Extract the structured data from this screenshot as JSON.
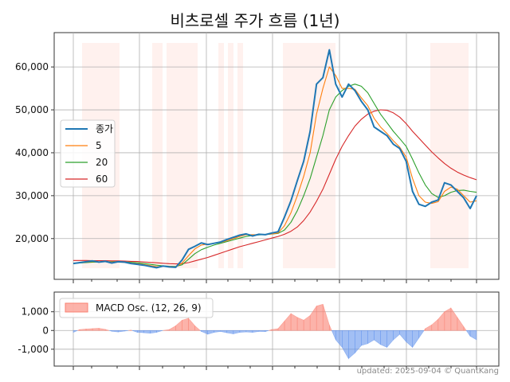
{
  "chart_data": [
    {
      "type": "line",
      "title": "비츠로셀 주가 흐름 (1년)",
      "xlabel": "",
      "ylabel": "",
      "ylim": [
        10500,
        68000
      ],
      "yticks": [
        20000,
        30000,
        40000,
        50000,
        60000
      ],
      "ytick_labels": [
        "20,000",
        "30,000",
        "40,000",
        "50,000",
        "60,000"
      ],
      "grid": true,
      "legend_position": "center-left",
      "x": [
        0,
        4,
        8,
        12,
        16,
        20,
        24,
        28,
        32,
        36,
        40,
        44,
        48,
        52,
        56,
        60,
        64,
        68,
        72,
        76,
        80,
        84,
        88,
        92,
        96,
        100,
        104,
        108,
        112,
        116,
        120,
        124,
        128,
        132,
        136,
        140,
        144,
        148,
        152,
        156,
        160,
        164,
        168,
        172,
        176,
        180,
        184,
        188,
        192,
        196,
        200,
        204,
        208,
        212,
        216,
        220,
        224,
        228,
        232,
        236,
        240,
        244,
        248,
        252
      ],
      "series": [
        {
          "name": "종가",
          "color": "#1f77b4",
          "values": [
            14200,
            14400,
            14600,
            14800,
            14500,
            14700,
            14300,
            14600,
            14500,
            14200,
            14000,
            13800,
            13500,
            13200,
            13600,
            13400,
            13300,
            15000,
            17500,
            18200,
            19000,
            18600,
            18900,
            19200,
            19800,
            20300,
            20800,
            21100,
            20600,
            21000,
            20900,
            21300,
            21600,
            25000,
            28800,
            33500,
            38000,
            45000,
            56000,
            57500,
            64000,
            56000,
            53000,
            56000,
            54500,
            52000,
            50000,
            46000,
            45000,
            44000,
            42000,
            41000,
            38000,
            31000,
            28000,
            27500,
            28500,
            29000,
            33000,
            32500,
            31000,
            29500,
            27000,
            30000
          ]
        },
        {
          "name": "5",
          "color": "#ff7f0e",
          "values": [
            14300,
            14350,
            14500,
            14650,
            14600,
            14600,
            14500,
            14500,
            14450,
            14300,
            14150,
            13950,
            13700,
            13450,
            13500,
            13500,
            13400,
            14300,
            16000,
            17600,
            18500,
            18700,
            18900,
            19100,
            19500,
            20000,
            20500,
            20900,
            20900,
            20900,
            20950,
            21100,
            21300,
            23000,
            26000,
            30000,
            34500,
            40000,
            49000,
            55000,
            60000,
            58000,
            55000,
            55000,
            54800,
            52800,
            51000,
            48000,
            46000,
            44500,
            42800,
            41300,
            39000,
            34000,
            30000,
            28500,
            28200,
            28600,
            31000,
            32000,
            31500,
            30000,
            28500,
            28800
          ]
        },
        {
          "name": "20",
          "color": "#2ca02c",
          "values": [
            14200,
            14300,
            14400,
            14500,
            14550,
            14600,
            14600,
            14600,
            14550,
            14450,
            14350,
            14200,
            14000,
            13800,
            13650,
            13550,
            13500,
            13900,
            15200,
            16500,
            17400,
            18000,
            18500,
            18900,
            19300,
            19700,
            20100,
            20500,
            20700,
            20850,
            20950,
            21050,
            21200,
            22000,
            23800,
            26500,
            30000,
            34000,
            39000,
            44000,
            50000,
            53000,
            54500,
            55500,
            56000,
            55500,
            54000,
            51500,
            49000,
            47000,
            45000,
            43300,
            41500,
            38500,
            35300,
            32500,
            30500,
            29600,
            30000,
            30800,
            31200,
            31300,
            31000,
            30800
          ]
        },
        {
          "name": "60",
          "color": "#d62728",
          "values": [
            14900,
            14900,
            14900,
            14850,
            14850,
            14850,
            14800,
            14800,
            14750,
            14700,
            14650,
            14550,
            14450,
            14350,
            14250,
            14150,
            14100,
            14150,
            14400,
            14800,
            15200,
            15600,
            16100,
            16600,
            17100,
            17600,
            18100,
            18500,
            18900,
            19300,
            19700,
            20100,
            20500,
            21000,
            21700,
            22700,
            24200,
            26200,
            28700,
            31500,
            35000,
            38500,
            41500,
            44000,
            46200,
            47800,
            49000,
            49700,
            50000,
            49900,
            49300,
            48300,
            46800,
            45000,
            43400,
            41800,
            40200,
            38800,
            37500,
            36400,
            35500,
            34800,
            34200,
            33700
          ]
        }
      ]
    },
    {
      "type": "area",
      "ylim": [
        -1900,
        2050
      ],
      "yticks": [
        -1000,
        0,
        1000
      ],
      "ytick_labels": [
        "-1,000",
        "0",
        "1,000"
      ],
      "grid": true,
      "legend_position": "top-left",
      "x": [
        0,
        4,
        8,
        12,
        16,
        20,
        24,
        28,
        32,
        36,
        40,
        44,
        48,
        52,
        56,
        60,
        64,
        68,
        72,
        76,
        80,
        84,
        88,
        92,
        96,
        100,
        104,
        108,
        112,
        116,
        120,
        124,
        128,
        132,
        136,
        140,
        144,
        148,
        152,
        156,
        160,
        164,
        168,
        172,
        176,
        180,
        184,
        188,
        192,
        196,
        200,
        204,
        208,
        212,
        216,
        220,
        224,
        228,
        232,
        236,
        240,
        244,
        248,
        252
      ],
      "series": [
        {
          "name": "MACD Osc. (12, 26, 9)",
          "positive_color": "#fa8072",
          "negative_color": "#6495ed",
          "values": [
            -100,
            50,
            80,
            100,
            120,
            60,
            -40,
            -80,
            -30,
            20,
            -100,
            -120,
            -150,
            -100,
            0,
            50,
            250,
            550,
            650,
            250,
            -50,
            -200,
            -100,
            -50,
            -120,
            -180,
            -100,
            -80,
            -100,
            -50,
            -60,
            50,
            100,
            500,
            900,
            700,
            550,
            800,
            1300,
            1400,
            300,
            -500,
            -900,
            -1500,
            -1200,
            -800,
            -700,
            -500,
            -750,
            -900,
            -500,
            -200,
            -600,
            -900,
            -400,
            100,
            300,
            600,
            1000,
            1200,
            700,
            200,
            -300,
            -500
          ]
        }
      ]
    }
  ],
  "legend": {
    "items": [
      {
        "label": "종가",
        "color": "#1f77b4"
      },
      {
        "label": "5",
        "color": "#ff7f0e"
      },
      {
        "label": "20",
        "color": "#2ca02c"
      },
      {
        "label": "60",
        "color": "#d62728"
      }
    ],
    "macd_label": "MACD Osc. (12, 26, 9)"
  },
  "footer": "updated: 2025-09-04 © QuantKang"
}
